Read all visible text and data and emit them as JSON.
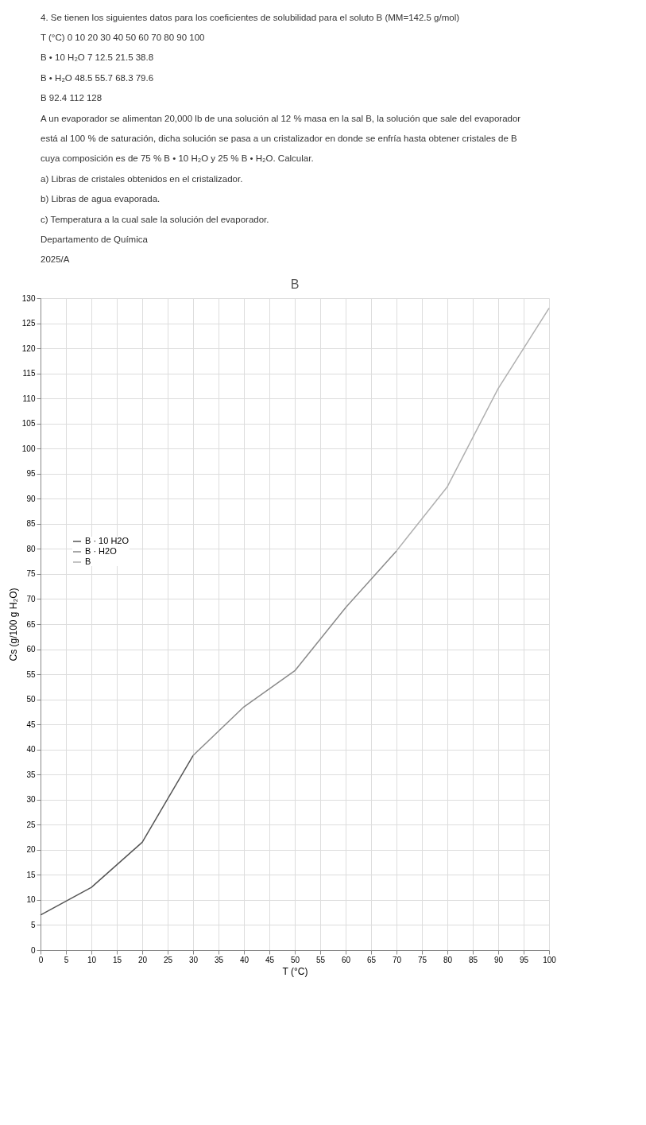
{
  "chart_data": {
    "type": "line",
    "title": "B",
    "xlabel": "T (°C)",
    "ylabel": "Cs (g/100 g H₂O)",
    "annotations": [
      "4. Se tienen los siguientes datos para los coeficientes de solubilidad para el soluto B (MM=142.5 g/mol)",
      "T (°C)    0    10    20    30    40    50    60    70    80    90    100",
      "B • 10 H₂O    7    12.5    21.5    38.8",
      "B • H₂O    48.5    55.7    68.3    79.6",
      "B    92.4    112    128",
      "A un evaporador se alimentan 20,000 lb de una solución al 12 % masa en la sal B, la solución que sale del evaporador",
      "está al 100 % de saturación, dicha solución se pasa a un cristalizador en donde se enfría hasta obtener cristales de B",
      "cuya composición es de 75 % B • 10 H₂O y 25 % B • H₂O. Calcular.",
      "a) Libras de cristales obtenidos en el cristalizador.",
      "b) Libras de agua evaporada.",
      "c) Temperatura a la cual sale la solución del evaporador.",
      "Departamento de Química",
      "2025/A"
    ],
    "series": [
      {
        "name": "B · 10 H2O",
        "color": "#555555",
        "x": [
          0,
          10,
          20,
          30
        ],
        "values": [
          7,
          12.5,
          21.5,
          38.8
        ]
      },
      {
        "name": "B · H2O",
        "color": "#8a8a8a",
        "x": [
          30,
          40,
          50,
          60,
          70
        ],
        "values": [
          38.8,
          48.5,
          55.7,
          68.3,
          79.6
        ]
      },
      {
        "name": "B",
        "color": "#b0b0b0",
        "x": [
          70,
          80,
          90,
          100
        ],
        "values": [
          79.6,
          92.4,
          112,
          128
        ]
      }
    ],
    "xlim": [
      0,
      100
    ],
    "xticks": [
      0,
      5,
      10,
      15,
      20,
      25,
      30,
      35,
      40,
      45,
      50,
      55,
      60,
      65,
      70,
      75,
      80,
      85,
      90,
      95,
      100
    ],
    "ylim": [
      0,
      130
    ],
    "yticks": [
      0,
      5,
      10,
      15,
      20,
      25,
      30,
      35,
      40,
      45,
      50,
      55,
      60,
      65,
      70,
      75,
      80,
      85,
      90,
      95,
      100,
      105,
      110,
      115,
      120,
      125,
      130
    ],
    "grid": true,
    "legend": "left",
    "marker": "none",
    "line_style": "solid"
  }
}
